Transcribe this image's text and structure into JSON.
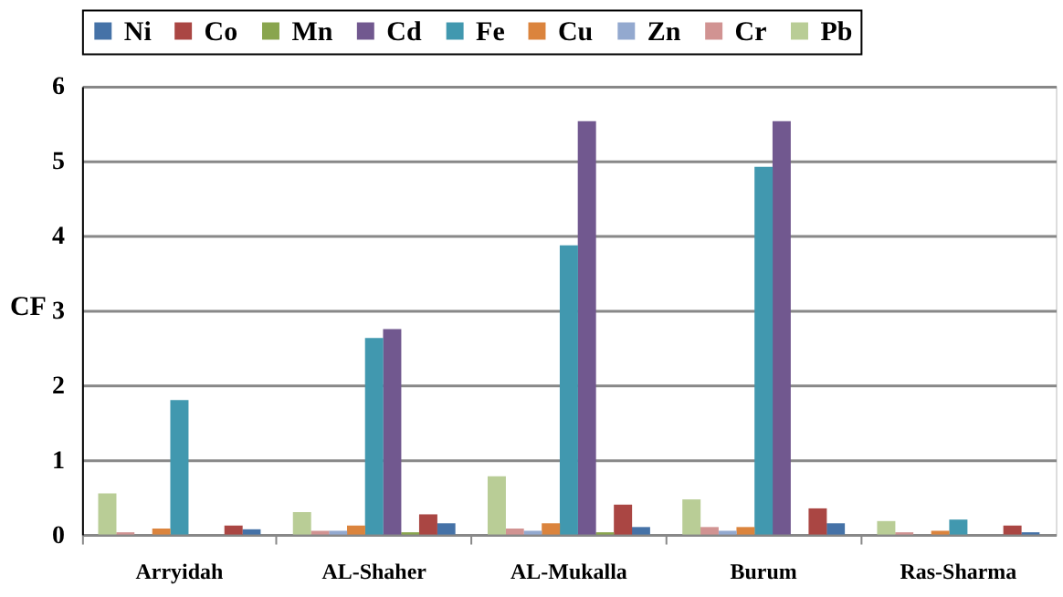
{
  "chart_data": {
    "type": "bar",
    "ylabel": "CF",
    "categories": [
      "Arryidah",
      "AL-Shaher",
      "AL-Mukalla",
      "Burum",
      "Ras-Sharma"
    ],
    "ylim": [
      0,
      6
    ],
    "yticks": [
      0,
      1,
      2,
      3,
      4,
      5,
      6
    ],
    "grid": "y",
    "legend": "top",
    "series": [
      {
        "name": "Ni",
        "color": "#4572a7",
        "values": [
          0.07,
          0.15,
          0.1,
          0.15,
          0.03
        ]
      },
      {
        "name": "Co",
        "color": "#aa4643",
        "values": [
          0.12,
          0.27,
          0.4,
          0.35,
          0.12
        ]
      },
      {
        "name": "Mn",
        "color": "#89a54e",
        "values": [
          0,
          0.03,
          0.03,
          0,
          0
        ]
      },
      {
        "name": "Cd",
        "color": "#71588f",
        "values": [
          0,
          2.75,
          5.53,
          5.53,
          0
        ]
      },
      {
        "name": "Fe",
        "color": "#4198af",
        "values": [
          1.8,
          2.63,
          3.87,
          4.92,
          0.2
        ]
      },
      {
        "name": "Cu",
        "color": "#db843d",
        "values": [
          0.08,
          0.12,
          0.15,
          0.1,
          0.05
        ]
      },
      {
        "name": "Zn",
        "color": "#93a9cf",
        "values": [
          0,
          0.05,
          0.05,
          0.05,
          0
        ]
      },
      {
        "name": "Cr",
        "color": "#d19392",
        "values": [
          0.03,
          0.05,
          0.08,
          0.1,
          0.03
        ]
      },
      {
        "name": "Pb",
        "color": "#b9cd96",
        "values": [
          0.55,
          0.3,
          0.78,
          0.47,
          0.18
        ]
      }
    ]
  }
}
